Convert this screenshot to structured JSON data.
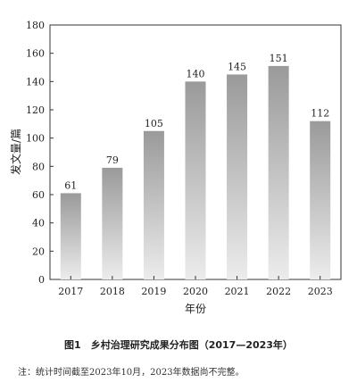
{
  "chart_data": {
    "type": "bar",
    "categories": [
      "2017",
      "2018",
      "2019",
      "2020",
      "2021",
      "2022",
      "2023"
    ],
    "values": [
      61,
      79,
      105,
      140,
      145,
      151,
      112
    ],
    "ylim": [
      0,
      180
    ],
    "yticks": [
      0,
      20,
      40,
      60,
      80,
      100,
      120,
      140,
      160,
      180
    ],
    "ylabel": "发文量/篇",
    "xlabel": "年份",
    "data_labels": true,
    "grid": false,
    "bar_color_top": "#9a9a9a",
    "bar_color_bottom": "#ececec"
  },
  "caption": "图1　乡村治理研究成果分布图（2017—2023年）",
  "note": "注：统计时间截至2023年10月，2023年数据尚不完整。"
}
